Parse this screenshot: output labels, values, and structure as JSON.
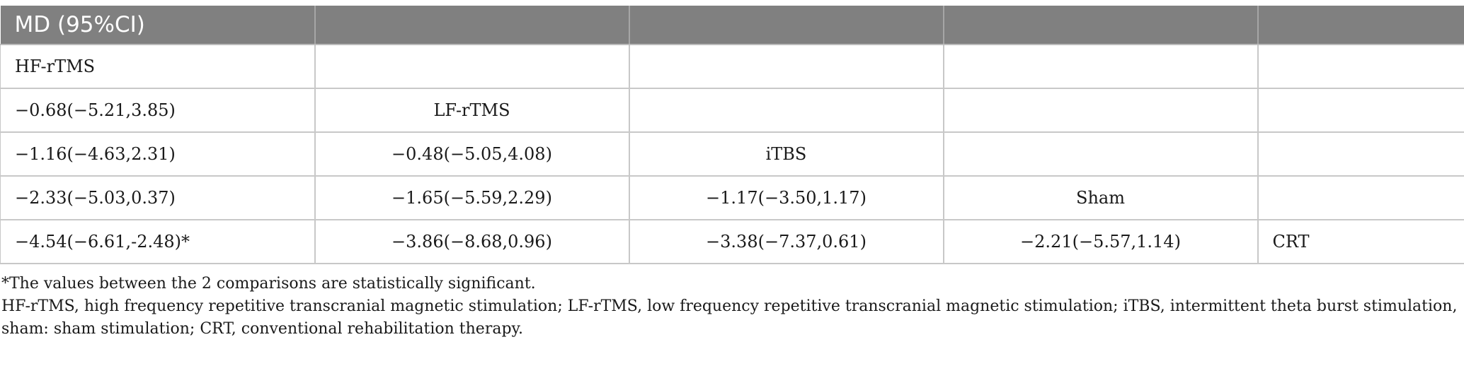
{
  "table": {
    "header": [
      "MD (95%CI)",
      "",
      "",
      "",
      ""
    ],
    "rows": [
      [
        "HF-rTMS",
        "",
        "",
        "",
        ""
      ],
      [
        "−0.68(−5.21,3.85)",
        "LF-rTMS",
        "",
        "",
        ""
      ],
      [
        "−1.16(−4.63,2.31)",
        "−0.48(−5.05,4.08)",
        "iTBS",
        "",
        ""
      ],
      [
        "−2.33(−5.03,0.37)",
        "−1.65(−5.59,2.29)",
        "−1.17(−3.50,1.17)",
        "Sham",
        ""
      ],
      [
        "−4.54(−6.61,-2.48)*",
        "−3.86(−8.68,0.96)",
        "−3.38(−7.37,0.61)",
        "−2.21(−5.57,1.14)",
        "CRT"
      ]
    ]
  },
  "footnotes": {
    "significance": "*The values between the 2 comparisons are statistically significant.",
    "abbreviations": "HF-rTMS, high frequency repetitive transcranial magnetic stimulation; LF-rTMS, low frequency repetitive transcranial magnetic stimulation; iTBS, intermittent theta burst stimulation, sham: sham stimulation; CRT, conventional rehabilitation therapy."
  }
}
